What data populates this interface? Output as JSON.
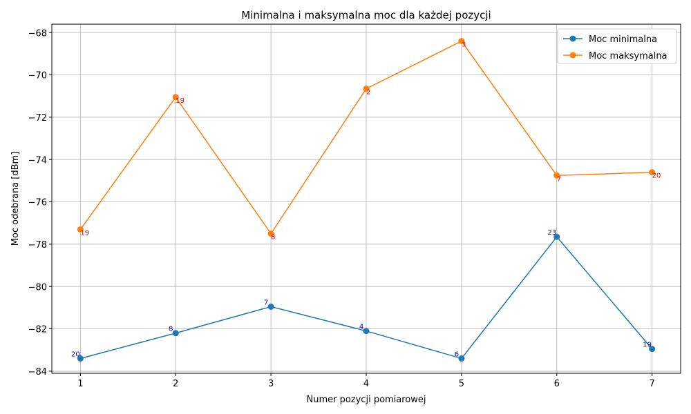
{
  "chart_data": {
    "type": "line",
    "title": "Minimalna i maksymalna moc dla każdej pozycji",
    "xlabel": "Numer pozycji pomiarowej",
    "ylabel": "Moc odebrana [dBm]",
    "x": [
      1,
      2,
      3,
      4,
      5,
      6,
      7
    ],
    "xlim": [
      0.7,
      7.3
    ],
    "ylim": [
      -84.1,
      -67.6
    ],
    "xticks": [
      1,
      2,
      3,
      4,
      5,
      6,
      7
    ],
    "yticks": [
      -84,
      -82,
      -80,
      -78,
      -76,
      -74,
      -72,
      -70,
      -68
    ],
    "grid": true,
    "legend_position": "top-right",
    "series": [
      {
        "name": "Moc minimalna",
        "color": "#1f77b4",
        "label_color": "#0000cc",
        "label_placement": "above-left",
        "values": [
          -83.4,
          -82.2,
          -80.95,
          -82.1,
          -83.4,
          -77.65,
          -82.95
        ],
        "point_labels": [
          "20",
          "8",
          "7",
          "4",
          "6",
          "23",
          "19"
        ]
      },
      {
        "name": "Moc maksymalna",
        "color": "#ff7f0e",
        "label_color": "#ff0000",
        "label_placement": "below-right",
        "values": [
          -77.3,
          -71.05,
          -77.5,
          -70.65,
          -68.4,
          -74.75,
          -74.6
        ],
        "point_labels": [
          "19",
          "19",
          "8",
          "2",
          "3",
          "7",
          "20"
        ]
      }
    ]
  }
}
